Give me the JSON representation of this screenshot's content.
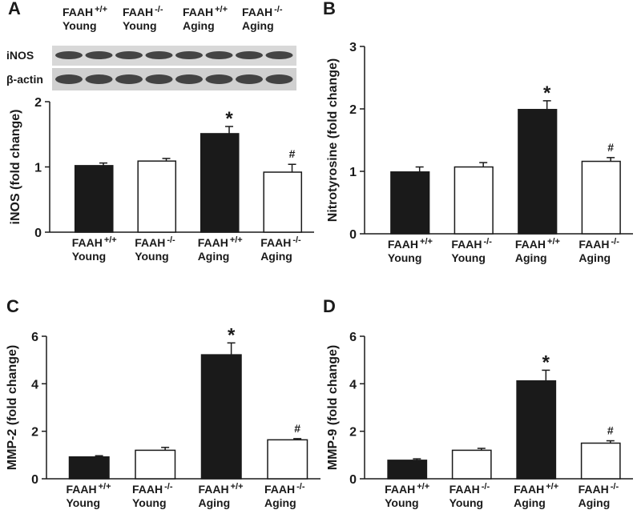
{
  "chart_data": [
    {
      "type": "bar",
      "panel": "A",
      "y_label": "iNOS (fold change)",
      "categories": [
        {
          "name": "FAAH",
          "genotype": "+/+",
          "age": "Young"
        },
        {
          "name": "FAAH",
          "genotype": "-/-",
          "age": "Young"
        },
        {
          "name": "FAAH",
          "genotype": "+/+",
          "age": "Aging"
        },
        {
          "name": "FAAH",
          "genotype": "-/-",
          "age": "Aging"
        }
      ],
      "values": [
        1.02,
        1.09,
        1.51,
        0.92
      ],
      "errors": [
        0.04,
        0.04,
        0.11,
        0.12
      ],
      "colors": [
        "#1a1a1a",
        "#ffffff",
        "#1a1a1a",
        "#ffffff"
      ],
      "ylim": [
        0,
        2
      ],
      "yticks": [
        0,
        1,
        2
      ],
      "annotations": [
        {
          "category": 2,
          "text": "*"
        },
        {
          "category": 3,
          "text": "#"
        }
      ],
      "blot": {
        "rows": [
          "iNOS",
          "β-actin"
        ]
      }
    },
    {
      "type": "bar",
      "panel": "B",
      "y_label": "Nitrotyrosine (fold change)",
      "categories": [
        {
          "name": "FAAH",
          "genotype": "+/+",
          "age": "Young"
        },
        {
          "name": "FAAH",
          "genotype": "-/-",
          "age": "Young"
        },
        {
          "name": "FAAH",
          "genotype": "+/+",
          "age": "Aging"
        },
        {
          "name": "FAAH",
          "genotype": "-/-",
          "age": "Aging"
        }
      ],
      "values": [
        0.99,
        1.07,
        1.99,
        1.16
      ],
      "errors": [
        0.08,
        0.07,
        0.14,
        0.06
      ],
      "colors": [
        "#1a1a1a",
        "#ffffff",
        "#1a1a1a",
        "#ffffff"
      ],
      "ylim": [
        0,
        3
      ],
      "yticks": [
        0,
        1,
        2,
        3
      ],
      "annotations": [
        {
          "category": 2,
          "text": "*"
        },
        {
          "category": 3,
          "text": "#"
        }
      ]
    },
    {
      "type": "bar",
      "panel": "C",
      "y_label": "MMP-2 (fold change)",
      "categories": [
        {
          "name": "FAAH",
          "genotype": "+/+",
          "age": "Young"
        },
        {
          "name": "FAAH",
          "genotype": "-/-",
          "age": "Young"
        },
        {
          "name": "FAAH",
          "genotype": "+/+",
          "age": "Aging"
        },
        {
          "name": "FAAH",
          "genotype": "-/-",
          "age": "Aging"
        }
      ],
      "values": [
        0.92,
        1.2,
        5.22,
        1.64
      ],
      "errors": [
        0.05,
        0.12,
        0.5,
        0.05
      ],
      "colors": [
        "#1a1a1a",
        "#ffffff",
        "#1a1a1a",
        "#ffffff"
      ],
      "ylim": [
        0,
        6
      ],
      "yticks": [
        0,
        2,
        4,
        6
      ],
      "annotations": [
        {
          "category": 2,
          "text": "*"
        },
        {
          "category": 3,
          "text": "#"
        }
      ]
    },
    {
      "type": "bar",
      "panel": "D",
      "y_label": "MMP-9 (fold change)",
      "categories": [
        {
          "name": "FAAH",
          "genotype": "+/+",
          "age": "Young"
        },
        {
          "name": "FAAH",
          "genotype": "-/-",
          "age": "Young"
        },
        {
          "name": "FAAH",
          "genotype": "+/+",
          "age": "Aging"
        },
        {
          "name": "FAAH",
          "genotype": "-/-",
          "age": "Aging"
        }
      ],
      "values": [
        0.78,
        1.2,
        4.12,
        1.5
      ],
      "errors": [
        0.06,
        0.08,
        0.45,
        0.1
      ],
      "colors": [
        "#1a1a1a",
        "#ffffff",
        "#1a1a1a",
        "#ffffff"
      ],
      "ylim": [
        0,
        6
      ],
      "yticks": [
        0,
        2,
        4,
        6
      ],
      "annotations": [
        {
          "category": 2,
          "text": "*"
        },
        {
          "category": 3,
          "text": "#"
        }
      ]
    }
  ]
}
